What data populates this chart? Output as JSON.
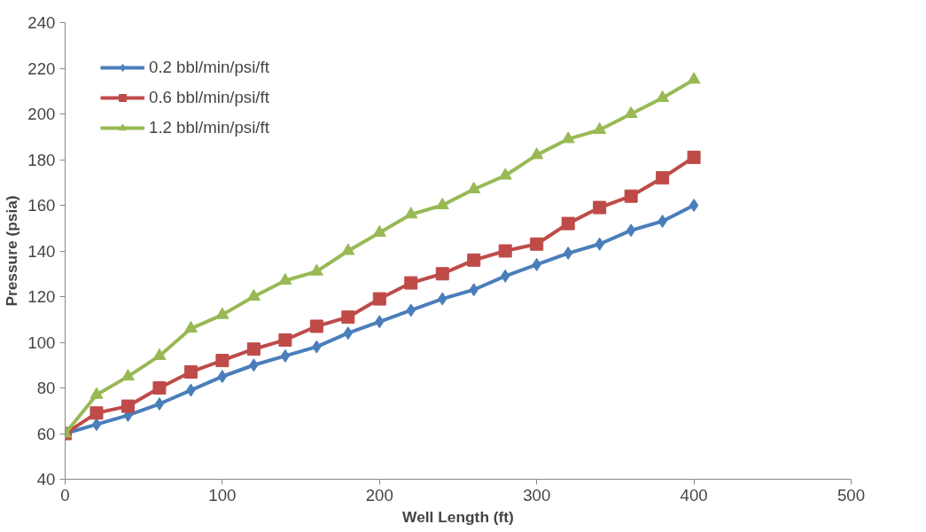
{
  "chart_data": {
    "type": "line",
    "xlabel": "Well Length (ft)",
    "ylabel": "Pressure (psia)",
    "x": [
      0,
      20,
      40,
      60,
      80,
      100,
      120,
      140,
      160,
      180,
      200,
      220,
      240,
      260,
      280,
      300,
      320,
      340,
      360,
      380,
      400
    ],
    "xlim": [
      0,
      500
    ],
    "xticks": [
      0,
      100,
      200,
      300,
      400,
      500
    ],
    "ylim": [
      40,
      240
    ],
    "yticks": [
      40,
      60,
      80,
      100,
      120,
      140,
      160,
      180,
      200,
      220,
      240
    ],
    "grid": false,
    "legend": "top left",
    "line_style": "solid",
    "series": [
      {
        "name": "0.2 bbl/min/psi/ft",
        "color": "#4a7ebb",
        "marker": "diamond",
        "values": [
          60,
          64,
          68,
          73,
          79,
          85,
          90,
          94,
          98,
          104,
          109,
          114,
          119,
          123,
          129,
          134,
          139,
          143,
          149,
          153,
          160
        ]
      },
      {
        "name": "0.6 bbl/min/psi/ft",
        "color": "#be4b48",
        "marker": "square",
        "values": [
          60,
          69,
          72,
          80,
          87,
          92,
          97,
          101,
          107,
          111,
          119,
          126,
          130,
          136,
          140,
          143,
          152,
          159,
          164,
          172,
          181
        ]
      },
      {
        "name": "1.2 bbl/min/psi/ft",
        "color": "#98b954",
        "marker": "triangle",
        "values": [
          60,
          77,
          85,
          94,
          106,
          112,
          120,
          127,
          131,
          140,
          148,
          156,
          160,
          167,
          173,
          182,
          189,
          193,
          200,
          207,
          215
        ]
      }
    ]
  }
}
